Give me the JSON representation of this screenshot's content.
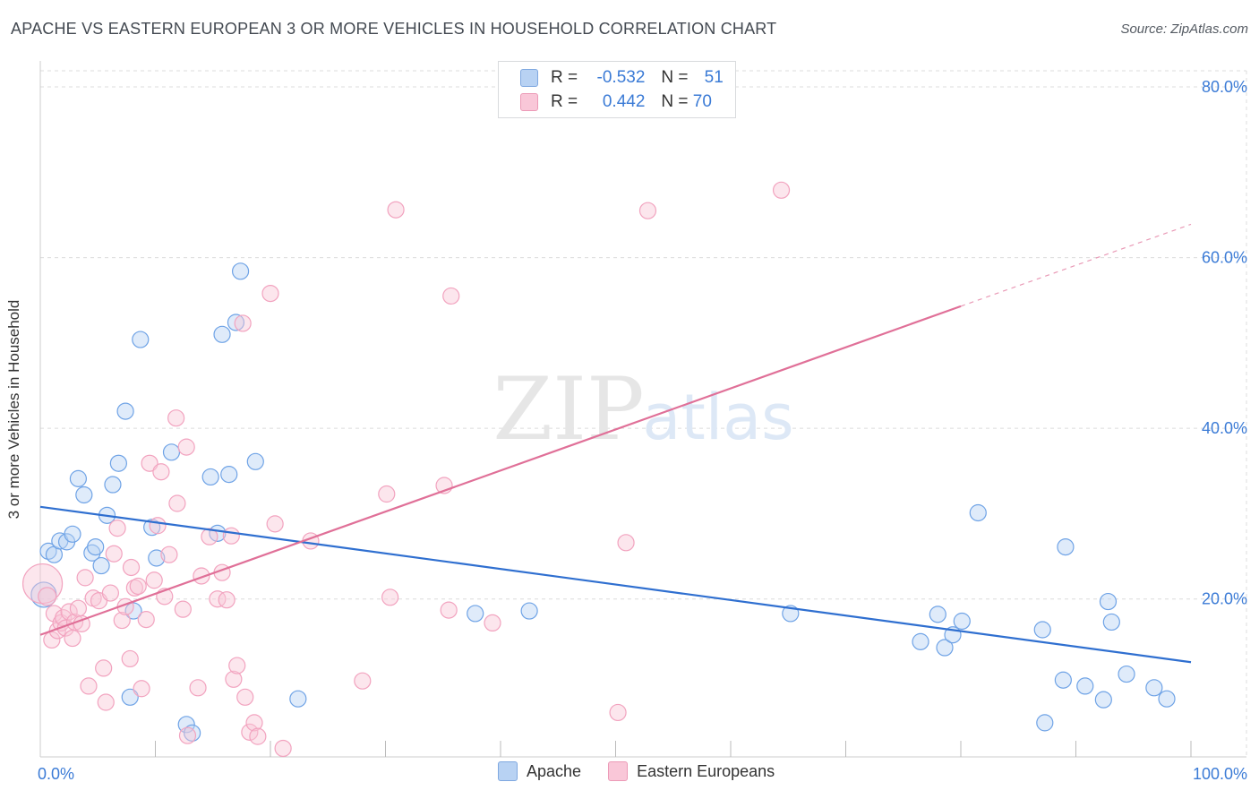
{
  "header": {
    "title": "APACHE VS EASTERN EUROPEAN 3 OR MORE VEHICLES IN HOUSEHOLD CORRELATION CHART",
    "source": "Source: ZipAtlas.com"
  },
  "watermark": {
    "zip": "ZIP",
    "atlas": "atlas"
  },
  "legend": {
    "rows": [
      {
        "r_label": "R =",
        "r_value": "-0.532",
        "n_label": "N =",
        "n_value": "51",
        "color": "#b8d2f3"
      },
      {
        "r_label": "R =",
        "r_value": "0.442",
        "n_label": "N =",
        "n_value": "70",
        "color": "#f9c7d8"
      }
    ]
  },
  "bottom_legend": [
    {
      "label": "Apache",
      "color": "#b8d2f3"
    },
    {
      "label": "Eastern Europeans",
      "color": "#f9c7d8"
    }
  ],
  "chart_data": {
    "type": "scatter",
    "title": "APACHE VS EASTERN EUROPEAN 3 OR MORE VEHICLES IN HOUSEHOLD CORRELATION CHART",
    "xlabel": "",
    "ylabel": "3 or more Vehicles in Household",
    "xlim": [
      0,
      100
    ],
    "ylim": [
      1.5,
      80
    ],
    "x_tick_labels": [
      "0.0%",
      "100.0%"
    ],
    "y_ticks": [
      20,
      40,
      60,
      80
    ],
    "y_tick_labels": [
      "20.0%",
      "40.0%",
      "60.0%",
      "80.0%"
    ],
    "grid": true,
    "legend_position": "top-center",
    "series": [
      {
        "name": "Apache",
        "color": "#6fa3e6",
        "line_color": "#2f6fd0",
        "trend": {
          "x": [
            0,
            100
          ],
          "y": [
            30.8,
            12.6
          ]
        },
        "points": [
          [
            0.3,
            20.5,
            14
          ],
          [
            0.7,
            25.6,
            9
          ],
          [
            1.2,
            25.2,
            9
          ],
          [
            1.7,
            26.8,
            9
          ],
          [
            2.3,
            26.7,
            9
          ],
          [
            2.8,
            27.6,
            9
          ],
          [
            3.3,
            34.1,
            9
          ],
          [
            3.8,
            32.2,
            9
          ],
          [
            4.5,
            25.4,
            9
          ],
          [
            4.8,
            26.1,
            9
          ],
          [
            5.3,
            23.9,
            9
          ],
          [
            5.8,
            29.8,
            9
          ],
          [
            6.3,
            33.4,
            9
          ],
          [
            6.8,
            35.9,
            9
          ],
          [
            7.4,
            42.0,
            9
          ],
          [
            7.8,
            8.5,
            9
          ],
          [
            8.1,
            18.6,
            9
          ],
          [
            8.7,
            50.4,
            9
          ],
          [
            9.7,
            28.4,
            9
          ],
          [
            10.1,
            24.8,
            9
          ],
          [
            11.4,
            37.2,
            9
          ],
          [
            12.7,
            5.3,
            9
          ],
          [
            13.2,
            4.3,
            9
          ],
          [
            14.8,
            34.3,
            9
          ],
          [
            15.4,
            27.7,
            9
          ],
          [
            15.8,
            51.0,
            9
          ],
          [
            16.4,
            34.6,
            9
          ],
          [
            17.0,
            52.4,
            9
          ],
          [
            17.4,
            58.4,
            9
          ],
          [
            18.7,
            36.1,
            9
          ],
          [
            22.4,
            8.3,
            9
          ],
          [
            37.8,
            18.3,
            9
          ],
          [
            42.5,
            18.6,
            9
          ],
          [
            65.2,
            18.3,
            9
          ],
          [
            76.5,
            15.0,
            9
          ],
          [
            78.0,
            18.2,
            9
          ],
          [
            78.6,
            14.3,
            9
          ],
          [
            79.3,
            15.8,
            9
          ],
          [
            80.1,
            17.4,
            9
          ],
          [
            81.5,
            30.1,
            9
          ],
          [
            87.1,
            16.4,
            9
          ],
          [
            88.9,
            10.5,
            9
          ],
          [
            87.3,
            5.5,
            9
          ],
          [
            89.1,
            26.1,
            9
          ],
          [
            90.8,
            9.8,
            9
          ],
          [
            92.4,
            8.2,
            9
          ],
          [
            92.8,
            19.7,
            9
          ],
          [
            93.1,
            17.3,
            9
          ],
          [
            94.4,
            11.2,
            9
          ],
          [
            96.8,
            9.6,
            9
          ],
          [
            97.9,
            8.3,
            9
          ]
        ]
      },
      {
        "name": "Eastern Europeans",
        "color": "#f2a3bf",
        "line_color": "#e07098",
        "trend": {
          "x": [
            0,
            80
          ],
          "y": [
            15.8,
            54.3
          ]
        },
        "trend_dashed": {
          "x": [
            80,
            100
          ],
          "y": [
            54.3,
            63.9
          ]
        },
        "points": [
          [
            0.2,
            21.8,
            22
          ],
          [
            0.6,
            20.3,
            10
          ],
          [
            1.0,
            15.2,
            9
          ],
          [
            1.2,
            18.3,
            9
          ],
          [
            1.5,
            16.3,
            9
          ],
          [
            1.8,
            17.2,
            9
          ],
          [
            2.0,
            17.8,
            9
          ],
          [
            2.2,
            16.6,
            9
          ],
          [
            2.5,
            18.5,
            9
          ],
          [
            2.8,
            15.4,
            9
          ],
          [
            3.0,
            17.3,
            9
          ],
          [
            3.3,
            18.9,
            9
          ],
          [
            3.6,
            17.1,
            9
          ],
          [
            3.9,
            22.5,
            9
          ],
          [
            4.2,
            9.8,
            9
          ],
          [
            4.6,
            20.1,
            9
          ],
          [
            5.1,
            19.8,
            9
          ],
          [
            5.5,
            11.9,
            9
          ],
          [
            5.7,
            7.9,
            9
          ],
          [
            6.1,
            20.7,
            9
          ],
          [
            6.4,
            25.3,
            9
          ],
          [
            6.7,
            28.3,
            9
          ],
          [
            7.1,
            17.5,
            9
          ],
          [
            7.4,
            19.1,
            9
          ],
          [
            7.8,
            13.0,
            9
          ],
          [
            7.9,
            23.7,
            9
          ],
          [
            8.2,
            21.3,
            9
          ],
          [
            8.5,
            21.5,
            9
          ],
          [
            8.8,
            9.5,
            9
          ],
          [
            9.2,
            17.6,
            9
          ],
          [
            9.5,
            35.9,
            9
          ],
          [
            9.9,
            22.2,
            9
          ],
          [
            10.2,
            28.6,
            9
          ],
          [
            10.5,
            34.9,
            9
          ],
          [
            10.8,
            20.3,
            9
          ],
          [
            11.2,
            25.2,
            9
          ],
          [
            11.8,
            41.2,
            9
          ],
          [
            11.9,
            31.2,
            9
          ],
          [
            12.4,
            18.8,
            9
          ],
          [
            12.7,
            37.8,
            9
          ],
          [
            12.8,
            4.0,
            9
          ],
          [
            13.7,
            9.6,
            9
          ],
          [
            14.0,
            22.7,
            9
          ],
          [
            14.7,
            27.3,
            9
          ],
          [
            15.4,
            20.0,
            9
          ],
          [
            15.8,
            23.1,
            9
          ],
          [
            16.2,
            19.9,
            9
          ],
          [
            16.6,
            27.4,
            9
          ],
          [
            16.8,
            10.6,
            9
          ],
          [
            17.1,
            12.2,
            9
          ],
          [
            17.6,
            52.3,
            9
          ],
          [
            17.8,
            8.5,
            9
          ],
          [
            18.2,
            4.4,
            9
          ],
          [
            18.6,
            5.5,
            9
          ],
          [
            18.9,
            3.9,
            9
          ],
          [
            20.0,
            55.8,
            9
          ],
          [
            20.4,
            28.8,
            9
          ],
          [
            21.1,
            2.5,
            9
          ],
          [
            23.5,
            26.8,
            9
          ],
          [
            28.0,
            10.4,
            9
          ],
          [
            30.1,
            32.3,
            9
          ],
          [
            30.4,
            20.2,
            9
          ],
          [
            30.9,
            65.6,
            9
          ],
          [
            35.1,
            33.3,
            9
          ],
          [
            35.5,
            18.7,
            9
          ],
          [
            35.7,
            55.5,
            9
          ],
          [
            39.3,
            17.2,
            9
          ],
          [
            50.2,
            6.7,
            9
          ],
          [
            50.9,
            26.6,
            9
          ],
          [
            52.8,
            65.5,
            9
          ],
          [
            64.4,
            67.9,
            9
          ]
        ]
      }
    ]
  }
}
